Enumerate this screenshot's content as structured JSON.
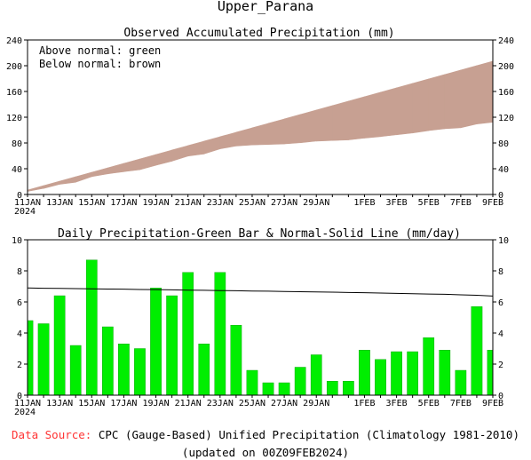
{
  "page": {
    "title": "Upper_Parana",
    "footer": {
      "source_label": "Data Source:",
      "source_text": "CPC (Gauge-Based) Unified Precipitation (Climatology 1981-2010)",
      "updated": "(updated on 00Z09FEB2024)"
    },
    "colors": {
      "above": "#00dd00",
      "below": "#c7a092",
      "bar": "#00ee00",
      "source_label": "#ff3333"
    }
  },
  "chart_data": [
    {
      "type": "area",
      "title": "Observed Accumulated Precipitation (mm)",
      "legend": {
        "placement": "top-left",
        "lines": [
          "Above normal: green",
          "Below normal: brown"
        ]
      },
      "ylim": [
        0,
        240
      ],
      "yticks": [
        0,
        40,
        80,
        120,
        160,
        200,
        240
      ],
      "xlabels": [
        "11JAN",
        "13JAN",
        "15JAN",
        "17JAN",
        "19JAN",
        "21JAN",
        "23JAN",
        "25JAN",
        "27JAN",
        "29JAN",
        "1FEB",
        "3FEB",
        "5FEB",
        "7FEB",
        "9FEB"
      ],
      "xlabel_days": [
        0,
        2,
        4,
        6,
        8,
        10,
        12,
        14,
        16,
        18,
        21,
        23,
        25,
        27,
        29
      ],
      "xyear": "2024",
      "days": [
        0,
        1,
        2,
        3,
        4,
        5,
        6,
        7,
        8,
        9,
        10,
        11,
        12,
        13,
        14,
        15,
        16,
        17,
        18,
        19,
        20,
        21,
        22,
        23,
        24,
        25,
        26,
        27,
        28,
        29
      ],
      "series": [
        {
          "name": "Observed",
          "values": [
            4.8,
            9.4,
            15.8,
            19.0,
            27.7,
            32.1,
            35.4,
            38.4,
            45.3,
            51.7,
            59.6,
            62.9,
            70.8,
            75.3,
            76.9,
            77.7,
            78.5,
            80.3,
            82.9,
            83.8,
            84.7,
            87.6,
            89.9,
            92.7,
            95.5,
            99.2,
            102.1,
            103.7,
            109.4,
            112.3
          ]
        },
        {
          "name": "Normal",
          "values": [
            6.9,
            13.8,
            20.7,
            27.6,
            34.5,
            41.4,
            48.3,
            55.2,
            62.1,
            69.0,
            75.9,
            82.8,
            89.7,
            96.6,
            103.5,
            110.4,
            117.3,
            124.2,
            131.1,
            138.0,
            144.9,
            151.8,
            158.7,
            165.6,
            172.5,
            179.4,
            186.3,
            193.2,
            200.1,
            207.0
          ]
        }
      ]
    },
    {
      "type": "bar",
      "title": "Daily Precipitation-Green Bar & Normal-Solid Line (mm/day)",
      "ylim": [
        0,
        10
      ],
      "yticks": [
        0,
        2,
        4,
        6,
        8,
        10
      ],
      "xlabels": [
        "11JAN",
        "13JAN",
        "15JAN",
        "17JAN",
        "19JAN",
        "21JAN",
        "23JAN",
        "25JAN",
        "27JAN",
        "29JAN",
        "1FEB",
        "3FEB",
        "5FEB",
        "7FEB",
        "9FEB"
      ],
      "xlabel_days": [
        0,
        2,
        4,
        6,
        8,
        10,
        12,
        14,
        16,
        18,
        21,
        23,
        25,
        27,
        29
      ],
      "xyear": "2024",
      "days": [
        0,
        1,
        2,
        3,
        4,
        5,
        6,
        7,
        8,
        9,
        10,
        11,
        12,
        13,
        14,
        15,
        16,
        17,
        18,
        19,
        20,
        21,
        22,
        23,
        24,
        25,
        26,
        27,
        28,
        29
      ],
      "series": [
        {
          "name": "Daily Precipitation",
          "values": [
            4.8,
            4.6,
            6.4,
            3.2,
            8.7,
            4.4,
            3.3,
            3.0,
            6.9,
            6.4,
            7.9,
            3.3,
            7.9,
            4.5,
            1.6,
            0.8,
            0.8,
            1.8,
            2.6,
            0.9,
            0.9,
            2.9,
            2.3,
            2.8,
            2.8,
            3.7,
            2.9,
            1.6,
            5.7,
            2.9
          ]
        },
        {
          "name": "Normal",
          "values": [
            6.9,
            6.88,
            6.87,
            6.86,
            6.84,
            6.83,
            6.82,
            6.8,
            6.79,
            6.78,
            6.76,
            6.75,
            6.73,
            6.72,
            6.7,
            6.69,
            6.67,
            6.66,
            6.64,
            6.63,
            6.61,
            6.59,
            6.57,
            6.55,
            6.53,
            6.51,
            6.49,
            6.46,
            6.43,
            6.38
          ]
        }
      ]
    }
  ]
}
